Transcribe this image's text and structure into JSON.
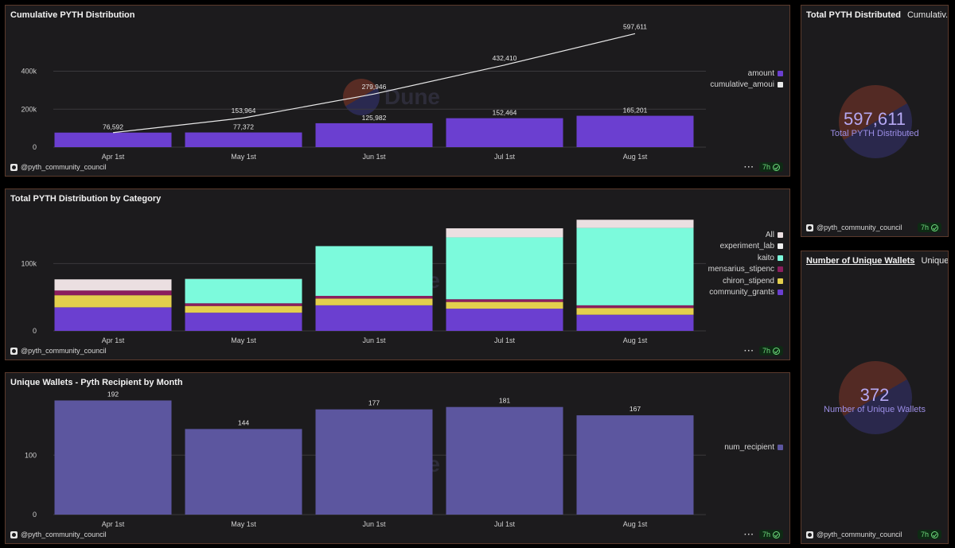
{
  "owner": "@pyth_community_council",
  "freshness": "7h",
  "watermark_text": "Dune",
  "colors": {
    "amount": "#6b3fd0",
    "cumulative": "#e8e8e8",
    "all": "#ebdfe1",
    "experiment_lab": "#f1f1f1",
    "kaito": "#7cfadc",
    "mensarius_stipend": "#8b1e5e",
    "chiron_stipend": "#e3cf4d",
    "community_grants": "#6b3fd0",
    "num_recipient": "#5c569f",
    "panel_bg": "#1c1b1d",
    "panel_border": "#5b3a2c"
  },
  "panels": {
    "cumulative": {
      "title": "Cumulative PYTH Distribution"
    },
    "category": {
      "title": "Total PYTH Distribution by Category"
    },
    "wallets_chart": {
      "title": "Unique Wallets - Pyth Recipient by Month"
    },
    "total_counter": {
      "title": "Total PYTH Distributed",
      "subtitle": "Cumulativ...",
      "value": "597,611",
      "label": "Total PYTH Distributed"
    },
    "wallets_counter": {
      "title": "Number of Unique Wallets",
      "subtitle": "Unique...",
      "value": "372",
      "label": "Number of Unique Wallets"
    }
  },
  "chart_data": [
    {
      "type": "bar",
      "title": "Cumulative PYTH Distribution",
      "categories": [
        "Apr 1st",
        "May 1st",
        "Jun 1st",
        "Jul 1st",
        "Aug 1st"
      ],
      "y_ticks": [
        "0",
        "200k",
        "400k"
      ],
      "ylim": [
        0,
        620000
      ],
      "grid": true,
      "legend_position": "right",
      "series": [
        {
          "name": "amount",
          "type": "bar",
          "values": [
            76592,
            77372,
            125982,
            152464,
            165201
          ],
          "labels": [
            "76,592",
            "77,372",
            "125,982",
            "152,464",
            "165,201"
          ]
        },
        {
          "name": "cumulative_amount",
          "legend_label": "cumulative_amoui",
          "type": "line",
          "values": [
            76592,
            153964,
            279946,
            432410,
            597611
          ],
          "labels": [
            "",
            "153,964",
            "279,946",
            "432,410",
            "597,611"
          ]
        }
      ]
    },
    {
      "type": "bar",
      "stacked": true,
      "title": "Total PYTH Distribution by Category",
      "categories": [
        "Apr 1st",
        "May 1st",
        "Jun 1st",
        "Jul 1st",
        "Aug 1st"
      ],
      "y_ticks": [
        "0",
        "100k"
      ],
      "ylim": [
        0,
        175000
      ],
      "grid": true,
      "legend_position": "right",
      "series": [
        {
          "name": "community_grants",
          "legend_label": "community_grants",
          "values": [
            35000,
            27000,
            38000,
            33000,
            24000
          ]
        },
        {
          "name": "chiron_stipend",
          "legend_label": "chiron_stipend",
          "values": [
            18000,
            10000,
            10000,
            10000,
            10000
          ]
        },
        {
          "name": "mensarius_stipend",
          "legend_label": "mensarius_stipenc",
          "values": [
            7000,
            4000,
            4000,
            4000,
            4000
          ]
        },
        {
          "name": "kaito",
          "legend_label": "kaito",
          "values": [
            0,
            36000,
            74000,
            92000,
            115000
          ]
        },
        {
          "name": "experiment_lab",
          "legend_label": "experiment_lab",
          "values": [
            0,
            0,
            0,
            0,
            0
          ]
        },
        {
          "name": "All",
          "legend_label": "All",
          "values": [
            16592,
            372,
            0,
            13464,
            12201
          ]
        }
      ]
    },
    {
      "type": "bar",
      "title": "Unique Wallets - Pyth Recipient by Month",
      "categories": [
        "Apr 1st",
        "May 1st",
        "Jun 1st",
        "Jul 1st",
        "Aug 1st"
      ],
      "y_ticks": [
        "0",
        "100"
      ],
      "ylim": [
        0,
        198
      ],
      "grid": true,
      "legend_position": "right",
      "series": [
        {
          "name": "num_recipient",
          "values": [
            192,
            144,
            177,
            181,
            167
          ],
          "labels": [
            "192",
            "144",
            "177",
            "181",
            "167"
          ]
        }
      ]
    }
  ]
}
